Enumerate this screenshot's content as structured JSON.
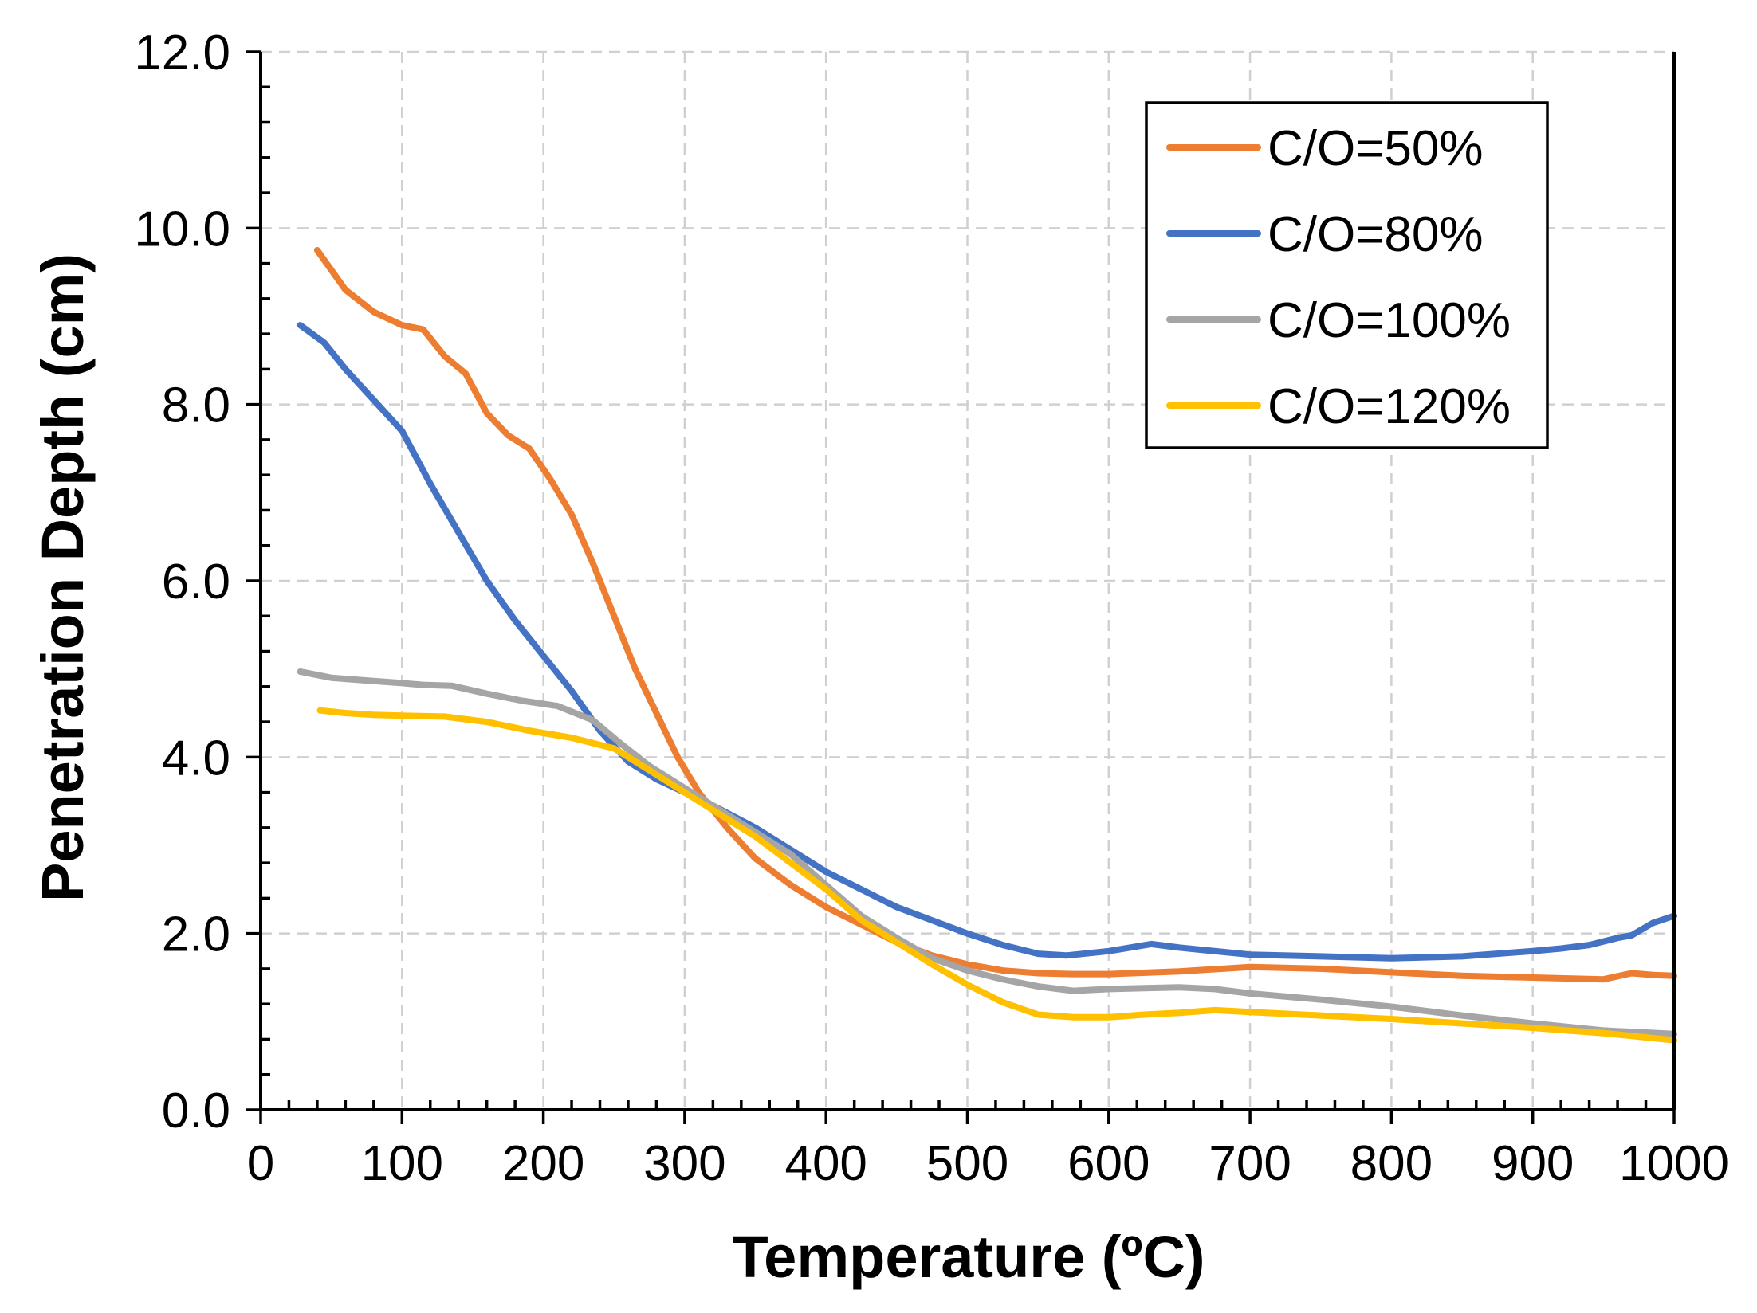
{
  "chart_data": {
    "type": "line",
    "title": "",
    "xlabel": "Temperature (ºC)",
    "ylabel": "Penetration Depth (cm)",
    "xlim": [
      0,
      1000
    ],
    "ylim": [
      0,
      12
    ],
    "grid": true,
    "legend_position": "top-right",
    "x_ticks": [
      0,
      100,
      200,
      300,
      400,
      500,
      600,
      700,
      800,
      900,
      1000
    ],
    "x_tick_labels": [
      "0",
      "100",
      "200",
      "300",
      "400",
      "500",
      "600",
      "700",
      "800",
      "900",
      "1000"
    ],
    "y_ticks": [
      0,
      2,
      4,
      6,
      8,
      10,
      12
    ],
    "y_tick_labels": [
      "0.0",
      "2.0",
      "4.0",
      "6.0",
      "8.0",
      "10.0",
      "12.0"
    ],
    "series": [
      {
        "name": "C/O=50%",
        "color": "#ED7D31",
        "x": [
          40,
          60,
          80,
          100,
          115,
          130,
          145,
          160,
          175,
          190,
          205,
          220,
          235,
          250,
          265,
          280,
          295,
          310,
          330,
          350,
          375,
          400,
          425,
          450,
          475,
          500,
          525,
          550,
          575,
          600,
          650,
          700,
          750,
          800,
          850,
          900,
          950,
          970,
          985,
          1000
        ],
        "y": [
          9.75,
          9.3,
          9.05,
          8.9,
          8.85,
          8.55,
          8.35,
          7.9,
          7.65,
          7.5,
          7.15,
          6.75,
          6.2,
          5.6,
          5.0,
          4.5,
          4.0,
          3.6,
          3.2,
          2.85,
          2.55,
          2.3,
          2.1,
          1.9,
          1.75,
          1.65,
          1.58,
          1.55,
          1.54,
          1.54,
          1.57,
          1.62,
          1.6,
          1.56,
          1.52,
          1.5,
          1.48,
          1.55,
          1.53,
          1.52
        ]
      },
      {
        "name": "C/O=80%",
        "color": "#4472C4",
        "x": [
          28,
          45,
          60,
          80,
          100,
          120,
          140,
          160,
          180,
          200,
          220,
          240,
          260,
          280,
          300,
          320,
          350,
          375,
          400,
          425,
          450,
          475,
          500,
          525,
          550,
          570,
          600,
          630,
          650,
          700,
          750,
          800,
          850,
          900,
          920,
          940,
          960,
          970,
          985,
          1000
        ],
        "y": [
          8.9,
          8.7,
          8.4,
          8.05,
          7.7,
          7.1,
          6.55,
          6.0,
          5.55,
          5.15,
          4.75,
          4.3,
          3.95,
          3.75,
          3.6,
          3.45,
          3.2,
          2.95,
          2.7,
          2.5,
          2.3,
          2.15,
          2.0,
          1.87,
          1.77,
          1.75,
          1.8,
          1.88,
          1.84,
          1.76,
          1.74,
          1.72,
          1.74,
          1.8,
          1.83,
          1.87,
          1.95,
          1.98,
          2.12,
          2.2
        ]
      },
      {
        "name": "C/O=100%",
        "color": "#A5A5A5",
        "x": [
          28,
          50,
          75,
          100,
          115,
          135,
          160,
          185,
          210,
          235,
          255,
          275,
          300,
          325,
          350,
          375,
          400,
          425,
          450,
          475,
          500,
          525,
          550,
          575,
          600,
          625,
          650,
          675,
          700,
          750,
          800,
          850,
          900,
          950,
          1000
        ],
        "y": [
          4.97,
          4.9,
          4.87,
          4.84,
          4.82,
          4.81,
          4.72,
          4.64,
          4.58,
          4.42,
          4.15,
          3.9,
          3.65,
          3.4,
          3.15,
          2.9,
          2.55,
          2.2,
          1.95,
          1.72,
          1.58,
          1.48,
          1.4,
          1.35,
          1.37,
          1.38,
          1.39,
          1.37,
          1.32,
          1.25,
          1.17,
          1.07,
          0.98,
          0.9,
          0.86
        ]
      },
      {
        "name": "C/O=120%",
        "color": "#FFC000",
        "x": [
          42,
          60,
          80,
          100,
          130,
          160,
          190,
          220,
          250,
          275,
          300,
          325,
          350,
          375,
          400,
          425,
          450,
          475,
          500,
          525,
          550,
          575,
          600,
          625,
          650,
          675,
          700,
          750,
          800,
          850,
          900,
          950,
          1000
        ],
        "y": [
          4.53,
          4.5,
          4.48,
          4.47,
          4.46,
          4.4,
          4.3,
          4.22,
          4.1,
          3.85,
          3.6,
          3.35,
          3.1,
          2.8,
          2.5,
          2.15,
          1.9,
          1.65,
          1.42,
          1.22,
          1.08,
          1.05,
          1.05,
          1.08,
          1.1,
          1.13,
          1.11,
          1.07,
          1.03,
          0.98,
          0.93,
          0.87,
          0.79
        ]
      }
    ]
  }
}
